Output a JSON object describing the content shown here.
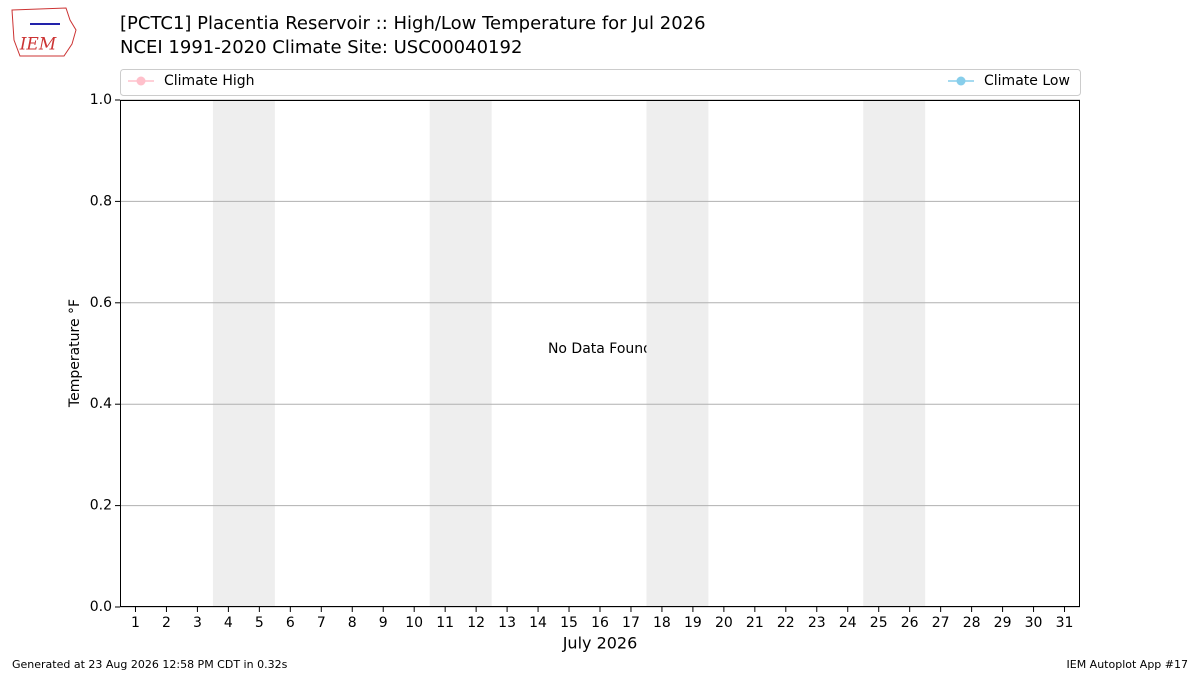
{
  "chart_data": {
    "type": "line",
    "logo_text": "IEM",
    "title": "[PCTC1] Placentia Reservoir :: High/Low Temperature for Jul 2026",
    "subtitle": "NCEI 1991-2020 Climate Site: USC00040192",
    "series": [
      {
        "name": "Climate High",
        "color": "#ffc0cb",
        "values": []
      },
      {
        "name": "Climate Low",
        "color": "#87ceeb",
        "values": []
      }
    ],
    "xlim": [
      0.5,
      31.5
    ],
    "xticks": [
      1,
      2,
      3,
      4,
      5,
      6,
      7,
      8,
      9,
      10,
      11,
      12,
      13,
      14,
      15,
      16,
      17,
      18,
      19,
      20,
      21,
      22,
      23,
      24,
      25,
      26,
      27,
      28,
      29,
      30,
      31
    ],
    "weekend_spans": [
      [
        3.5,
        5.5
      ],
      [
        10.5,
        12.5
      ],
      [
        17.5,
        19.5
      ],
      [
        24.5,
        26.5
      ]
    ],
    "ylim": [
      0,
      1
    ],
    "yticks": [
      {
        "value": 0,
        "label": "0.0"
      },
      0.2,
      0.4,
      0.6,
      0.8,
      {
        "value": 1,
        "label": "1.0"
      }
    ],
    "grid": true,
    "xlabel": "July 2026",
    "ylabel": "Temperature °F",
    "annotation": "No Data Found",
    "footer_left": "Generated at 23 Aug 2026 12:58 PM CDT in 0.32s",
    "footer_right": "IEM Autoplot App #17"
  }
}
